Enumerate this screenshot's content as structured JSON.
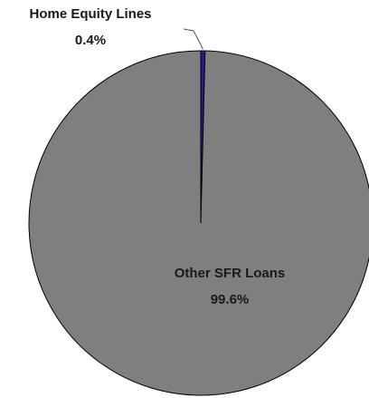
{
  "chart_data": {
    "type": "pie",
    "title": "",
    "slices": [
      {
        "label": "Home Equity Lines",
        "value": 0.4,
        "value_label": "0.4%",
        "color": "#1f1f8f"
      },
      {
        "label": "Other SFR Loans",
        "value": 99.6,
        "value_label": "99.6%",
        "color": "#7f7f7f"
      }
    ],
    "start_angle_deg": 0,
    "direction": "clockwise",
    "slice_border_color": "#000000",
    "leader_line_color": "#555555"
  }
}
